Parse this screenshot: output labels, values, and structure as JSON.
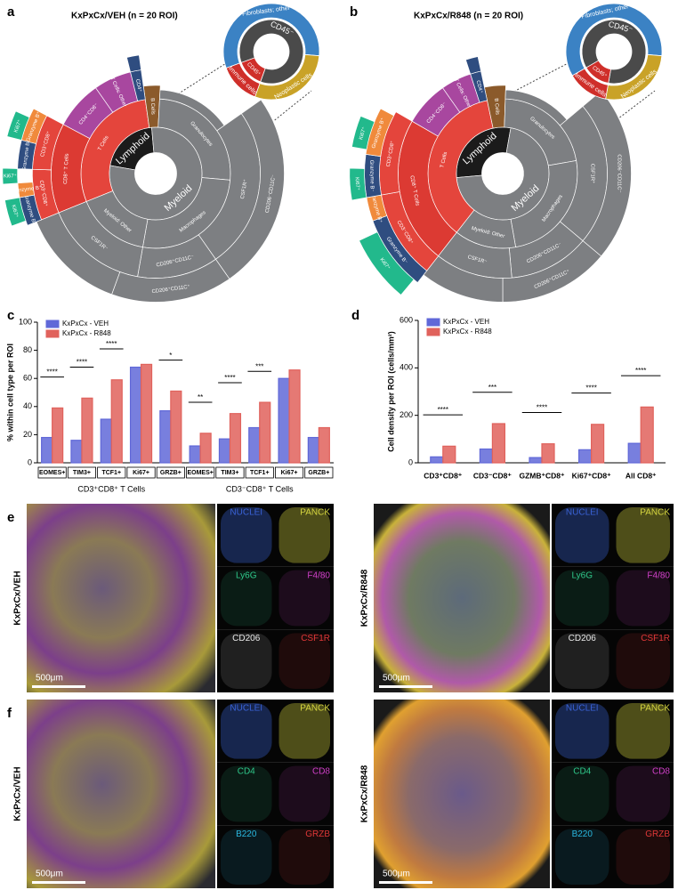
{
  "sunbursts": [
    {
      "label": "a",
      "title": "KxPxCx/VEH (n = 20 ROI)",
      "inset": {
        "outer": [
          "Fibroblasts; other",
          "Neoplastic cells",
          "Immune cells"
        ],
        "inner": [
          "CD45⁻",
          "CD45⁺"
        ]
      },
      "segments": [
        "Lymphoid",
        "Myeloid",
        "T Cells",
        "B Cells",
        "Granulocytes",
        "Macrophages",
        "Myeloid: Other",
        "CD8⁺ T Cells",
        "CD4⁻CD8⁻",
        "T Cells: Other",
        "CD4⁺",
        "CD3⁺CD8⁺",
        "CD3⁻CD8⁺",
        "CSF1R⁺",
        "CSF1R⁻",
        "CD206⁺CD11C⁻",
        "CD206⁻CD11C⁻",
        "CD206⁺CD11C⁺",
        "Granzyme B⁺",
        "Granzyme B⁻",
        "Granzyme B⁺",
        "Granzyme B⁻",
        "Ki67⁺",
        "Ki67⁺",
        "Ki67⁺"
      ]
    },
    {
      "label": "b",
      "title": "KxPxCx/R848 (n = 20 ROI)",
      "inset": {
        "outer": [
          "Fibroblasts; other",
          "Neoplastic cells",
          "Immune cells"
        ],
        "inner": [
          "CD45⁻",
          "CD45⁺"
        ]
      },
      "segments": [
        "Lymphoid",
        "Myeloid",
        "T Cells",
        "B Cells",
        "Granulocytes",
        "Macrophages",
        "Myeloid: Other",
        "CD8⁺ T Cells",
        "CD4⁻CD8⁻",
        "T Cells: Other",
        "CD4⁺",
        "CD3⁺CD8⁺",
        "CD3⁻CD8⁺",
        "CSF1R⁺",
        "CSF1R⁻",
        "CD206⁺CD11C⁻",
        "CD206⁻CD11C⁻",
        "CD206⁺CD11C⁺",
        "Granzyme B⁺",
        "Granzyme B⁻",
        "Granzyme B⁺",
        "Granzyme B⁻",
        "Ki67⁺",
        "Ki67⁺",
        "Ki67⁺"
      ]
    }
  ],
  "chart_data": [
    {
      "type": "bar",
      "panel": "c",
      "y_label": "% within cell type per ROI",
      "categories": [
        "EOMES+",
        "TIM3+",
        "TCF1+",
        "Ki67+",
        "GRZB+",
        "EOMES+",
        "TIM3+",
        "TCF1+",
        "Ki67+",
        "GRZB+"
      ],
      "group_labels": [
        "CD3⁺CD8⁺ T Cells",
        "CD3⁻CD8⁺ T Cells"
      ],
      "series": [
        {
          "name": "KxPxCx - VEH",
          "color": "#6068d8",
          "values": [
            18,
            16,
            31,
            68,
            37,
            12,
            17,
            25,
            60,
            18
          ]
        },
        {
          "name": "KxPxCx - R848",
          "color": "#e0625c",
          "values": [
            39,
            46,
            59,
            70,
            51,
            21,
            35,
            43,
            66,
            25
          ]
        }
      ],
      "significance": [
        "****",
        "****",
        "****",
        null,
        "*",
        "**",
        "****",
        "***",
        null,
        null
      ],
      "ylim": [
        0,
        100
      ],
      "yticks": [
        0,
        20,
        40,
        60,
        80,
        100
      ]
    },
    {
      "type": "bar",
      "panel": "d",
      "y_label": "Cell density per ROI (cells/mm²)",
      "categories": [
        "CD3⁺CD8⁺",
        "CD3⁻CD8⁺",
        "GZMB⁺CD8⁺",
        "Ki67⁺CD8⁺",
        "All CD8⁺"
      ],
      "series": [
        {
          "name": "KxPxCx - VEH",
          "color": "#6068d8",
          "values": [
            25,
            58,
            22,
            55,
            82
          ]
        },
        {
          "name": "KxPxCx - R848",
          "color": "#e0625c",
          "values": [
            70,
            165,
            80,
            162,
            235
          ]
        }
      ],
      "significance": [
        "****",
        "***",
        "****",
        "****",
        "****"
      ],
      "ylim": [
        0,
        600
      ],
      "yticks": [
        0,
        200,
        400,
        600
      ]
    }
  ],
  "images": [
    {
      "label": "e",
      "panels": [
        {
          "condition": "KxPxCx/VEH",
          "scale": "500μm",
          "channels": [
            "NUCLEI",
            "PANCK",
            "Ly6G",
            "F4/80",
            "CD206",
            "CSF1R"
          ]
        },
        {
          "condition": "KxPxCx/R848",
          "scale": "500μm",
          "channels": [
            "NUCLEI",
            "PANCK",
            "Ly6G",
            "F4/80",
            "CD206",
            "CSF1R"
          ]
        }
      ]
    },
    {
      "label": "f",
      "panels": [
        {
          "condition": "KxPxCx/VEH",
          "scale": "500μm",
          "channels": [
            "NUCLEI",
            "PANCK",
            "CD4",
            "CD8",
            "B220",
            "GRZB"
          ]
        },
        {
          "condition": "KxPxCx/R848",
          "scale": "500μm",
          "channels": [
            "NUCLEI",
            "PANCK",
            "CD4",
            "CD8",
            "B220",
            "GRZB"
          ]
        }
      ]
    }
  ]
}
